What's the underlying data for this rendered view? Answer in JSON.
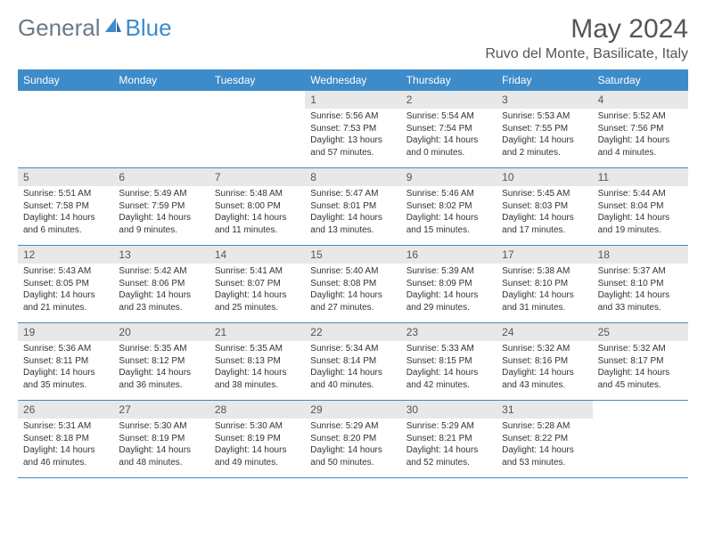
{
  "logo": {
    "part1": "General",
    "part2": "Blue"
  },
  "title": "May 2024",
  "location": "Ruvo del Monte, Basilicate, Italy",
  "colors": {
    "header_bg": "#3d8bc9",
    "daynum_bg": "#e8e8e8",
    "text": "#333333",
    "muted": "#555555",
    "logo_gray": "#6b7a86"
  },
  "weekdays": [
    "Sunday",
    "Monday",
    "Tuesday",
    "Wednesday",
    "Thursday",
    "Friday",
    "Saturday"
  ],
  "weeks": [
    [
      null,
      null,
      null,
      {
        "n": "1",
        "sunrise": "5:56 AM",
        "sunset": "7:53 PM",
        "daylight": "13 hours and 57 minutes."
      },
      {
        "n": "2",
        "sunrise": "5:54 AM",
        "sunset": "7:54 PM",
        "daylight": "14 hours and 0 minutes."
      },
      {
        "n": "3",
        "sunrise": "5:53 AM",
        "sunset": "7:55 PM",
        "daylight": "14 hours and 2 minutes."
      },
      {
        "n": "4",
        "sunrise": "5:52 AM",
        "sunset": "7:56 PM",
        "daylight": "14 hours and 4 minutes."
      }
    ],
    [
      {
        "n": "5",
        "sunrise": "5:51 AM",
        "sunset": "7:58 PM",
        "daylight": "14 hours and 6 minutes."
      },
      {
        "n": "6",
        "sunrise": "5:49 AM",
        "sunset": "7:59 PM",
        "daylight": "14 hours and 9 minutes."
      },
      {
        "n": "7",
        "sunrise": "5:48 AM",
        "sunset": "8:00 PM",
        "daylight": "14 hours and 11 minutes."
      },
      {
        "n": "8",
        "sunrise": "5:47 AM",
        "sunset": "8:01 PM",
        "daylight": "14 hours and 13 minutes."
      },
      {
        "n": "9",
        "sunrise": "5:46 AM",
        "sunset": "8:02 PM",
        "daylight": "14 hours and 15 minutes."
      },
      {
        "n": "10",
        "sunrise": "5:45 AM",
        "sunset": "8:03 PM",
        "daylight": "14 hours and 17 minutes."
      },
      {
        "n": "11",
        "sunrise": "5:44 AM",
        "sunset": "8:04 PM",
        "daylight": "14 hours and 19 minutes."
      }
    ],
    [
      {
        "n": "12",
        "sunrise": "5:43 AM",
        "sunset": "8:05 PM",
        "daylight": "14 hours and 21 minutes."
      },
      {
        "n": "13",
        "sunrise": "5:42 AM",
        "sunset": "8:06 PM",
        "daylight": "14 hours and 23 minutes."
      },
      {
        "n": "14",
        "sunrise": "5:41 AM",
        "sunset": "8:07 PM",
        "daylight": "14 hours and 25 minutes."
      },
      {
        "n": "15",
        "sunrise": "5:40 AM",
        "sunset": "8:08 PM",
        "daylight": "14 hours and 27 minutes."
      },
      {
        "n": "16",
        "sunrise": "5:39 AM",
        "sunset": "8:09 PM",
        "daylight": "14 hours and 29 minutes."
      },
      {
        "n": "17",
        "sunrise": "5:38 AM",
        "sunset": "8:10 PM",
        "daylight": "14 hours and 31 minutes."
      },
      {
        "n": "18",
        "sunrise": "5:37 AM",
        "sunset": "8:10 PM",
        "daylight": "14 hours and 33 minutes."
      }
    ],
    [
      {
        "n": "19",
        "sunrise": "5:36 AM",
        "sunset": "8:11 PM",
        "daylight": "14 hours and 35 minutes."
      },
      {
        "n": "20",
        "sunrise": "5:35 AM",
        "sunset": "8:12 PM",
        "daylight": "14 hours and 36 minutes."
      },
      {
        "n": "21",
        "sunrise": "5:35 AM",
        "sunset": "8:13 PM",
        "daylight": "14 hours and 38 minutes."
      },
      {
        "n": "22",
        "sunrise": "5:34 AM",
        "sunset": "8:14 PM",
        "daylight": "14 hours and 40 minutes."
      },
      {
        "n": "23",
        "sunrise": "5:33 AM",
        "sunset": "8:15 PM",
        "daylight": "14 hours and 42 minutes."
      },
      {
        "n": "24",
        "sunrise": "5:32 AM",
        "sunset": "8:16 PM",
        "daylight": "14 hours and 43 minutes."
      },
      {
        "n": "25",
        "sunrise": "5:32 AM",
        "sunset": "8:17 PM",
        "daylight": "14 hours and 45 minutes."
      }
    ],
    [
      {
        "n": "26",
        "sunrise": "5:31 AM",
        "sunset": "8:18 PM",
        "daylight": "14 hours and 46 minutes."
      },
      {
        "n": "27",
        "sunrise": "5:30 AM",
        "sunset": "8:19 PM",
        "daylight": "14 hours and 48 minutes."
      },
      {
        "n": "28",
        "sunrise": "5:30 AM",
        "sunset": "8:19 PM",
        "daylight": "14 hours and 49 minutes."
      },
      {
        "n": "29",
        "sunrise": "5:29 AM",
        "sunset": "8:20 PM",
        "daylight": "14 hours and 50 minutes."
      },
      {
        "n": "30",
        "sunrise": "5:29 AM",
        "sunset": "8:21 PM",
        "daylight": "14 hours and 52 minutes."
      },
      {
        "n": "31",
        "sunrise": "5:28 AM",
        "sunset": "8:22 PM",
        "daylight": "14 hours and 53 minutes."
      },
      null
    ]
  ],
  "labels": {
    "sunrise": "Sunrise:",
    "sunset": "Sunset:",
    "daylight": "Daylight:"
  }
}
